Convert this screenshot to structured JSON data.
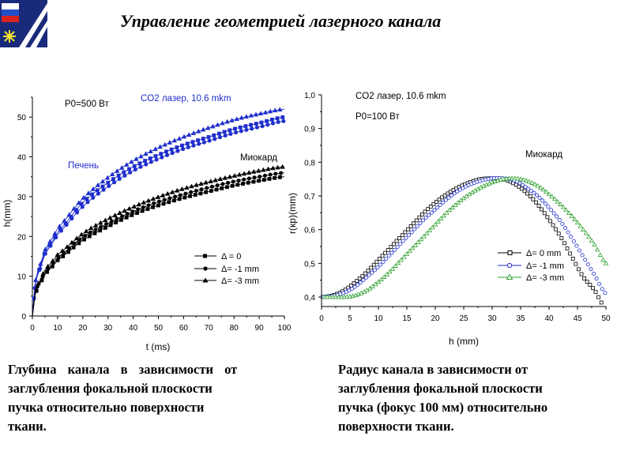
{
  "header": {
    "title": "Управление геометрией лазерного канала"
  },
  "captions": {
    "left": [
      "Глубина канала в зависимости от",
      "заглубления фокальной плоскости",
      "пучка относительно поверхности",
      "ткани."
    ],
    "right": [
      "Радиус канала в зависимости от",
      "заглубления фокальной плоскости",
      "пучка (фокус 100 мм) относительно",
      "поверхности ткани."
    ]
  },
  "colors": {
    "blue": "#1f2ecc",
    "black": "#000000",
    "green": "#2ea02e",
    "navy": "#1a2a7a"
  },
  "chart_data": [
    {
      "type": "line",
      "xlabel": "t (ms)",
      "ylabel": "h(mm)",
      "xlim": [
        0,
        100
      ],
      "ylim": [
        0,
        55
      ],
      "xticks": [
        0,
        10,
        20,
        30,
        40,
        50,
        60,
        70,
        80,
        90,
        100
      ],
      "yticks": [
        0,
        10,
        20,
        30,
        40,
        50
      ],
      "annotations": {
        "power": "P0=500 Вт",
        "laser": "CO2 лазер, 10.6 mkm",
        "liver": "Печень",
        "myocard": "Миокард"
      },
      "legend": {
        "position": "lower-right",
        "entries": [
          "Δ = 0",
          "Δ= -1 mm",
          "Δ= -3 mm"
        ]
      },
      "x": [
        0,
        1,
        2,
        5,
        10,
        20,
        30,
        40,
        50,
        60,
        70,
        80,
        90,
        100
      ],
      "series": [
        {
          "group": "liver",
          "color": "#1f2ecc",
          "marker": "square",
          "values": [
            0,
            7.5,
            10.5,
            16,
            21,
            28.5,
            33.5,
            37.5,
            40.5,
            43,
            45,
            47,
            48.5,
            50
          ]
        },
        {
          "group": "liver",
          "color": "#1f2ecc",
          "marker": "circle",
          "values": [
            0,
            7.3,
            10.2,
            15.5,
            20.5,
            27.5,
            32.5,
            36.5,
            39.5,
            42,
            44,
            46,
            47.5,
            49
          ]
        },
        {
          "group": "liver",
          "color": "#1f2ecc",
          "marker": "triangle",
          "values": [
            0,
            7.8,
            11,
            16.6,
            22,
            29.5,
            34.8,
            39,
            42.3,
            45,
            47.3,
            49.3,
            50.8,
            52
          ]
        },
        {
          "group": "myocard",
          "color": "#000000",
          "marker": "square",
          "values": [
            0,
            5,
            7,
            10.5,
            14,
            19,
            22.5,
            25.5,
            27.8,
            29.7,
            31.3,
            32.8,
            34,
            35
          ]
        },
        {
          "group": "myocard",
          "color": "#000000",
          "marker": "circle",
          "values": [
            0,
            5.3,
            7.4,
            11,
            14.7,
            19.8,
            23.3,
            26.3,
            28.7,
            30.6,
            32.3,
            33.8,
            35,
            36
          ]
        },
        {
          "group": "myocard",
          "color": "#000000",
          "marker": "triangle",
          "values": [
            0,
            5.6,
            7.8,
            11.6,
            15.4,
            20.7,
            24.4,
            27.4,
            29.9,
            32,
            33.7,
            35.2,
            36.5,
            37.5
          ]
        }
      ]
    },
    {
      "type": "line",
      "xlabel": "h (mm)",
      "ylabel": "r(кр)(mm)",
      "xlim": [
        0,
        50
      ],
      "ylim": [
        0.4,
        1.0
      ],
      "xticks": [
        0,
        5,
        10,
        15,
        20,
        25,
        30,
        35,
        40,
        45,
        50
      ],
      "yticks": [
        "0,4",
        "0,5",
        "0,6",
        "0,7",
        "0,8",
        "0,9",
        "1,0"
      ],
      "annotations": {
        "laser": "CO2 лазер, 10.6 mkm",
        "power": "P0=100 Вт",
        "myocard": "Миокард"
      },
      "legend": {
        "position": "lower-right",
        "entries": [
          "Δ= 0 mm",
          "Δ= -1 mm",
          "Δ= -3 mm"
        ]
      },
      "series": [
        {
          "color": "#000000",
          "marker": "square",
          "x": [
            0,
            2,
            4,
            6,
            8,
            10,
            12,
            14,
            16,
            18,
            20,
            22,
            24,
            26,
            28,
            30,
            32,
            34,
            36,
            38,
            40,
            42,
            44,
            46,
            48,
            50
          ],
          "values": [
            0.4,
            0.405,
            0.42,
            0.445,
            0.475,
            0.51,
            0.545,
            0.58,
            0.615,
            0.65,
            0.68,
            0.705,
            0.725,
            0.74,
            0.75,
            0.752,
            0.75,
            0.735,
            0.71,
            0.675,
            0.63,
            0.58,
            0.52,
            0.46,
            0.42,
            0.365
          ]
        },
        {
          "color": "#1f2ecc",
          "marker": "circle",
          "x": [
            0,
            2,
            4,
            6,
            8,
            10,
            12,
            14,
            16,
            18,
            20,
            22,
            24,
            26,
            28,
            30,
            32,
            34,
            36,
            38,
            40,
            42,
            44,
            46,
            48,
            50
          ],
          "values": [
            0.4,
            0.403,
            0.413,
            0.432,
            0.46,
            0.49,
            0.525,
            0.56,
            0.595,
            0.63,
            0.66,
            0.69,
            0.715,
            0.733,
            0.745,
            0.752,
            0.752,
            0.745,
            0.725,
            0.7,
            0.665,
            0.625,
            0.575,
            0.52,
            0.465,
            0.41
          ]
        },
        {
          "color": "#2ea02e",
          "marker": "triangle",
          "x": [
            0,
            2,
            4,
            6,
            8,
            10,
            12,
            14,
            16,
            18,
            20,
            22,
            24,
            26,
            28,
            30,
            32,
            34,
            36,
            38,
            40,
            42,
            44,
            46,
            48,
            50
          ],
          "values": [
            0.4,
            0.4,
            0.4,
            0.405,
            0.42,
            0.445,
            0.475,
            0.51,
            0.545,
            0.58,
            0.615,
            0.65,
            0.68,
            0.705,
            0.725,
            0.74,
            0.75,
            0.752,
            0.745,
            0.73,
            0.705,
            0.675,
            0.64,
            0.6,
            0.555,
            0.5
          ]
        }
      ]
    }
  ]
}
